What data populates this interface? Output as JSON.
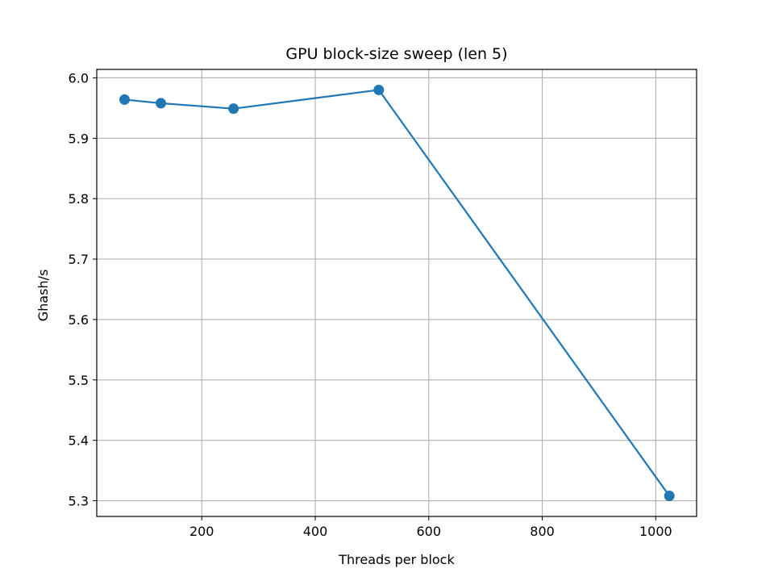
{
  "chart_data": {
    "type": "line",
    "title": "GPU block-size sweep (len 5)",
    "xlabel": "Threads per block",
    "ylabel": "Ghash/s",
    "x": [
      64,
      128,
      256,
      512,
      1024
    ],
    "series": [
      {
        "values": [
          5.964,
          5.958,
          5.949,
          5.98,
          5.308
        ],
        "color": "#1f77b4",
        "marker": "circle"
      }
    ],
    "xlim": [
      15,
      1072
    ],
    "ylim": [
      5.274,
      6.014
    ],
    "xticks": [
      200,
      400,
      600,
      800,
      1000
    ],
    "xtick_labels": [
      "200",
      "400",
      "600",
      "800",
      "1000"
    ],
    "yticks": [
      5.3,
      5.4,
      5.5,
      5.6,
      5.7,
      5.8,
      5.9,
      6.0
    ],
    "ytick_labels": [
      "5.3",
      "5.4",
      "5.5",
      "5.6",
      "5.7",
      "5.8",
      "5.9",
      "6.0"
    ],
    "grid": true,
    "grid_color": "#b0b0b0"
  }
}
